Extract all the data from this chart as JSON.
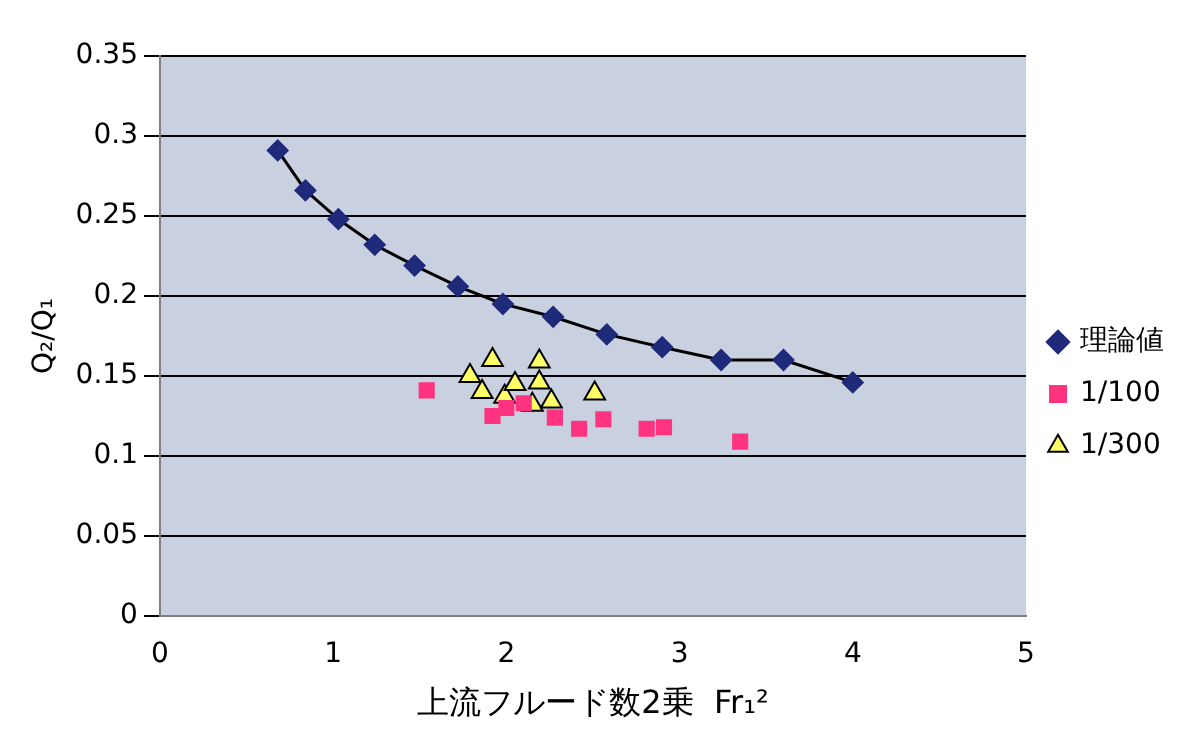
{
  "chart_data": {
    "type": "scatter",
    "xlabel": "上流フルード数2乗  Fr₁²",
    "ylabel": "Q₂/Q₁",
    "xlim": [
      0,
      5
    ],
    "xticks": [
      0,
      1,
      2,
      3,
      4,
      5
    ],
    "ylim": [
      0,
      0.35
    ],
    "yticks": [
      0,
      0.05,
      0.1,
      0.15,
      0.2,
      0.25,
      0.3,
      0.35
    ],
    "grid": "y",
    "legend": "right",
    "series": [
      {
        "name": "理論値",
        "type": "line",
        "marker": "diamond",
        "color": "#1f2a7a",
        "x": [
          0.68,
          0.84,
          1.03,
          1.24,
          1.47,
          1.72,
          1.98,
          2.27,
          2.58,
          2.9,
          3.24,
          3.6,
          4.0
        ],
        "values": [
          0.291,
          0.266,
          0.248,
          0.232,
          0.219,
          0.206,
          0.195,
          0.187,
          0.176,
          0.168,
          0.16,
          0.16,
          0.146
        ]
      },
      {
        "name": "1/100",
        "type": "scatter",
        "marker": "square",
        "color": "#ff3380",
        "x": [
          1.54,
          1.92,
          2.0,
          2.1,
          2.28,
          2.42,
          2.56,
          2.81,
          2.91,
          3.35
        ],
        "values": [
          0.141,
          0.125,
          0.13,
          0.133,
          0.124,
          0.117,
          0.123,
          0.117,
          0.118,
          0.109
        ]
      },
      {
        "name": "1/300",
        "type": "scatter",
        "marker": "triangle",
        "color": "#ffff66",
        "x": [
          1.79,
          1.86,
          1.92,
          1.99,
          2.05,
          2.15,
          2.19,
          2.19,
          2.26,
          2.51
        ],
        "values": [
          0.15,
          0.14,
          0.16,
          0.137,
          0.145,
          0.132,
          0.159,
          0.146,
          0.134,
          0.139
        ]
      }
    ]
  }
}
